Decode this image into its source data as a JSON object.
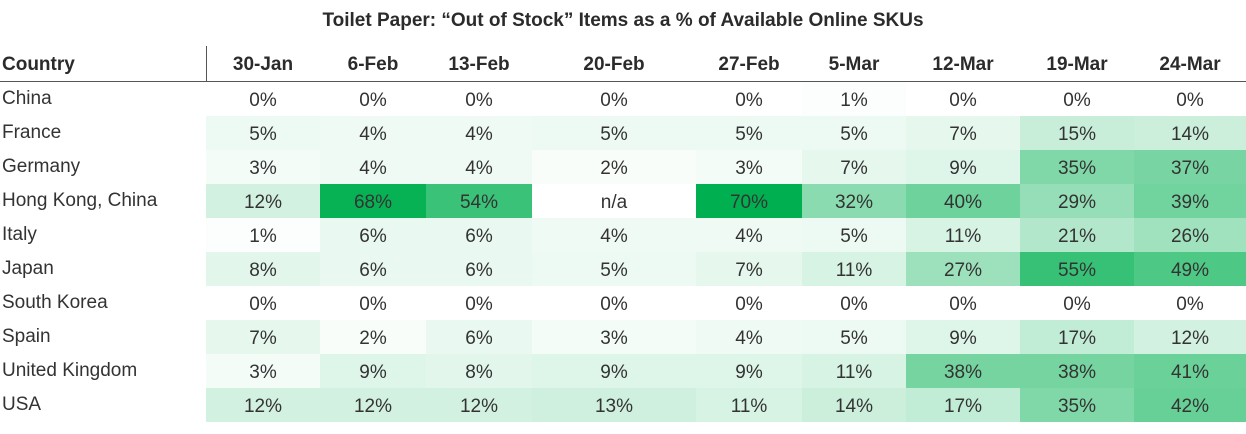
{
  "chart_data": {
    "type": "heatmap",
    "title": "Toilet Paper: “Out of Stock” Items as a % of Available Online SKUs",
    "row_header": "Country",
    "columns": [
      "30-Jan",
      "6-Feb",
      "13-Feb",
      "20-Feb",
      "27-Feb",
      "5-Mar",
      "12-Mar",
      "19-Mar",
      "24-Mar"
    ],
    "rows": [
      {
        "label": "China",
        "values": [
          0,
          0,
          0,
          0,
          0,
          1,
          0,
          0,
          0
        ]
      },
      {
        "label": "France",
        "values": [
          5,
          4,
          4,
          5,
          5,
          5,
          7,
          15,
          14
        ]
      },
      {
        "label": "Germany",
        "values": [
          3,
          4,
          4,
          2,
          3,
          7,
          9,
          35,
          37
        ]
      },
      {
        "label": "Hong Kong, China",
        "values": [
          12,
          68,
          54,
          null,
          70,
          32,
          40,
          29,
          39
        ]
      },
      {
        "label": "Italy",
        "values": [
          1,
          6,
          6,
          4,
          4,
          5,
          11,
          21,
          26
        ]
      },
      {
        "label": "Japan",
        "values": [
          8,
          6,
          6,
          5,
          7,
          11,
          27,
          55,
          49
        ]
      },
      {
        "label": "South Korea",
        "values": [
          0,
          0,
          0,
          0,
          0,
          0,
          0,
          0,
          0
        ]
      },
      {
        "label": "Spain",
        "values": [
          7,
          2,
          6,
          3,
          4,
          5,
          9,
          17,
          12
        ]
      },
      {
        "label": "United Kingdom",
        "values": [
          3,
          9,
          8,
          9,
          9,
          11,
          38,
          38,
          41
        ]
      },
      {
        "label": "USA",
        "values": [
          12,
          12,
          12,
          13,
          11,
          14,
          17,
          35,
          42
        ]
      }
    ],
    "missing_label": "n/a",
    "unit": "%",
    "color_scale": {
      "low": "#ffffff",
      "high": "#00b050",
      "max_value": 70
    }
  }
}
